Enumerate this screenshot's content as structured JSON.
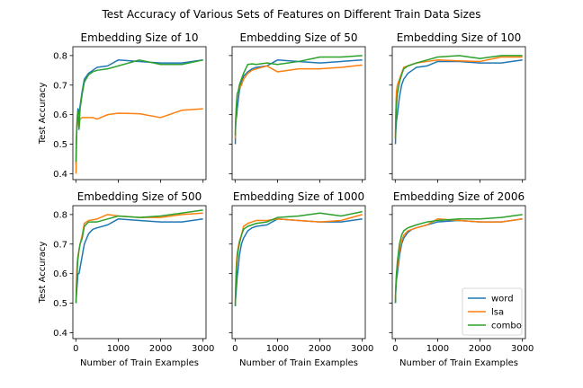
{
  "figure": {
    "title": "Test Accuracy of Various Sets of Features on Different Train Data Sizes"
  },
  "legend": {
    "location": "lower-right",
    "entries": [
      {
        "label": "word",
        "color": "#1f77b4"
      },
      {
        "label": "lsa",
        "color": "#ff7f0e"
      },
      {
        "label": "combo",
        "color": "#2ca02c"
      }
    ]
  },
  "chart_data": [
    {
      "type": "line",
      "title": "Embedding Size of 10",
      "xlabel": "",
      "ylabel": "Test Accuracy",
      "xlim": [
        -70,
        3070
      ],
      "ylim": [
        0.38,
        0.83
      ],
      "xticks": [
        0,
        1000,
        2000,
        3000
      ],
      "yticks": [
        0.4,
        0.5,
        0.6,
        0.7,
        0.8
      ],
      "xticklabels": [],
      "yticklabels": [
        "0.4",
        "0.5",
        "0.6",
        "0.7",
        "0.8"
      ],
      "grid": false,
      "series": [
        {
          "name": "word",
          "color": "#1f77b4",
          "x": [
            5,
            10,
            20,
            30,
            40,
            50,
            75,
            100,
            150,
            200,
            300,
            400,
            500,
            750,
            1000,
            1500,
            2000,
            2500,
            3000
          ],
          "y": [
            0.43,
            0.5,
            0.53,
            0.57,
            0.6,
            0.62,
            0.6,
            0.63,
            0.68,
            0.72,
            0.74,
            0.75,
            0.76,
            0.765,
            0.785,
            0.78,
            0.775,
            0.775,
            0.785
          ]
        },
        {
          "name": "lsa",
          "color": "#ff7f0e",
          "x": [
            5,
            10,
            20,
            30,
            40,
            50,
            75,
            100,
            150,
            200,
            300,
            400,
            500,
            750,
            1000,
            1500,
            2000,
            2500,
            3000
          ],
          "y": [
            0.4,
            0.45,
            0.55,
            0.58,
            0.59,
            0.6,
            0.555,
            0.585,
            0.59,
            0.59,
            0.59,
            0.59,
            0.585,
            0.6,
            0.605,
            0.603,
            0.59,
            0.615,
            0.62
          ]
        },
        {
          "name": "combo",
          "color": "#2ca02c",
          "x": [
            5,
            10,
            20,
            30,
            40,
            50,
            75,
            100,
            150,
            200,
            300,
            400,
            500,
            750,
            1000,
            1500,
            2000,
            2500,
            3000
          ],
          "y": [
            0.44,
            0.5,
            0.55,
            0.58,
            0.6,
            0.61,
            0.55,
            0.62,
            0.67,
            0.71,
            0.735,
            0.745,
            0.75,
            0.755,
            0.765,
            0.785,
            0.77,
            0.77,
            0.785
          ]
        }
      ]
    },
    {
      "type": "line",
      "title": "Embedding Size of 50",
      "xlabel": "",
      "ylabel": "",
      "xlim": [
        -70,
        3070
      ],
      "ylim": [
        0.38,
        0.83
      ],
      "xticks": [
        0,
        1000,
        2000,
        3000
      ],
      "yticks": [
        0.4,
        0.5,
        0.6,
        0.7,
        0.8
      ],
      "xticklabels": [],
      "yticklabels": [],
      "grid": false,
      "series": [
        {
          "name": "word",
          "color": "#1f77b4",
          "x": [
            5,
            10,
            20,
            30,
            40,
            50,
            75,
            100,
            150,
            200,
            300,
            400,
            500,
            750,
            1000,
            1500,
            2000,
            2500,
            3000
          ],
          "y": [
            0.5,
            0.55,
            0.58,
            0.59,
            0.6,
            0.62,
            0.65,
            0.68,
            0.71,
            0.73,
            0.745,
            0.755,
            0.76,
            0.765,
            0.785,
            0.78,
            0.775,
            0.78,
            0.785
          ]
        },
        {
          "name": "lsa",
          "color": "#ff7f0e",
          "x": [
            5,
            10,
            20,
            30,
            40,
            50,
            75,
            100,
            150,
            200,
            300,
            400,
            500,
            750,
            1000,
            1500,
            2000,
            2500,
            3000
          ],
          "y": [
            0.52,
            0.56,
            0.6,
            0.63,
            0.65,
            0.67,
            0.68,
            0.69,
            0.7,
            0.72,
            0.74,
            0.75,
            0.755,
            0.765,
            0.745,
            0.755,
            0.755,
            0.76,
            0.768
          ]
        },
        {
          "name": "combo",
          "color": "#2ca02c",
          "x": [
            5,
            10,
            20,
            30,
            40,
            50,
            75,
            100,
            150,
            200,
            300,
            400,
            500,
            750,
            1000,
            1500,
            2000,
            2500,
            3000
          ],
          "y": [
            0.53,
            0.57,
            0.6,
            0.63,
            0.65,
            0.67,
            0.68,
            0.7,
            0.72,
            0.74,
            0.77,
            0.772,
            0.77,
            0.775,
            0.77,
            0.78,
            0.795,
            0.795,
            0.8
          ]
        }
      ]
    },
    {
      "type": "line",
      "title": "Embedding Size of 100",
      "xlabel": "",
      "ylabel": "",
      "xlim": [
        -70,
        3070
      ],
      "ylim": [
        0.38,
        0.83
      ],
      "xticks": [
        0,
        1000,
        2000,
        3000
      ],
      "yticks": [
        0.4,
        0.5,
        0.6,
        0.7,
        0.8
      ],
      "xticklabels": [],
      "yticklabels": [],
      "grid": false,
      "series": [
        {
          "name": "word",
          "color": "#1f77b4",
          "x": [
            5,
            10,
            20,
            30,
            40,
            50,
            75,
            100,
            150,
            200,
            300,
            400,
            500,
            750,
            1000,
            1500,
            2000,
            2500,
            3000
          ],
          "y": [
            0.5,
            0.53,
            0.56,
            0.58,
            0.59,
            0.6,
            0.63,
            0.66,
            0.7,
            0.72,
            0.74,
            0.75,
            0.76,
            0.765,
            0.78,
            0.78,
            0.775,
            0.775,
            0.785
          ]
        },
        {
          "name": "lsa",
          "color": "#ff7f0e",
          "x": [
            5,
            10,
            20,
            30,
            40,
            50,
            75,
            100,
            150,
            200,
            300,
            400,
            500,
            750,
            1000,
            1500,
            2000,
            2500,
            3000
          ],
          "y": [
            0.52,
            0.6,
            0.65,
            0.68,
            0.69,
            0.7,
            0.71,
            0.72,
            0.74,
            0.76,
            0.765,
            0.77,
            0.775,
            0.78,
            0.785,
            0.782,
            0.78,
            0.795,
            0.795
          ]
        },
        {
          "name": "combo",
          "color": "#2ca02c",
          "x": [
            5,
            10,
            20,
            30,
            40,
            50,
            75,
            100,
            150,
            200,
            300,
            400,
            500,
            750,
            1000,
            1500,
            2000,
            2500,
            3000
          ],
          "y": [
            0.52,
            0.57,
            0.6,
            0.63,
            0.65,
            0.67,
            0.69,
            0.71,
            0.735,
            0.755,
            0.765,
            0.77,
            0.775,
            0.785,
            0.795,
            0.8,
            0.79,
            0.8,
            0.8
          ]
        }
      ]
    },
    {
      "type": "line",
      "title": "Embedding Size of 500",
      "xlabel": "Number of Train Examples",
      "ylabel": "Test Accuracy",
      "xlim": [
        -70,
        3070
      ],
      "ylim": [
        0.38,
        0.83
      ],
      "xticks": [
        0,
        1000,
        2000,
        3000
      ],
      "yticks": [
        0.4,
        0.5,
        0.6,
        0.7,
        0.8
      ],
      "xticklabels": [
        "0",
        "1000",
        "2000",
        "3000"
      ],
      "yticklabels": [
        "0.4",
        "0.5",
        "0.6",
        "0.7",
        "0.8"
      ],
      "grid": false,
      "series": [
        {
          "name": "word",
          "color": "#1f77b4",
          "x": [
            5,
            10,
            20,
            30,
            40,
            50,
            75,
            100,
            150,
            200,
            300,
            400,
            500,
            750,
            1000,
            1500,
            2000,
            2500,
            3000
          ],
          "y": [
            0.5,
            0.52,
            0.54,
            0.56,
            0.58,
            0.6,
            0.6,
            0.62,
            0.66,
            0.7,
            0.735,
            0.75,
            0.755,
            0.765,
            0.785,
            0.78,
            0.775,
            0.775,
            0.785
          ]
        },
        {
          "name": "lsa",
          "color": "#ff7f0e",
          "x": [
            5,
            10,
            20,
            30,
            40,
            50,
            75,
            100,
            150,
            200,
            300,
            400,
            500,
            750,
            1000,
            1500,
            2000,
            2500,
            3000
          ],
          "y": [
            0.5,
            0.55,
            0.6,
            0.63,
            0.65,
            0.66,
            0.68,
            0.7,
            0.73,
            0.77,
            0.78,
            0.782,
            0.785,
            0.8,
            0.795,
            0.79,
            0.79,
            0.8,
            0.805
          ]
        },
        {
          "name": "combo",
          "color": "#2ca02c",
          "x": [
            5,
            10,
            20,
            30,
            40,
            50,
            75,
            100,
            150,
            200,
            300,
            400,
            500,
            750,
            1000,
            1500,
            2000,
            2500,
            3000
          ],
          "y": [
            0.5,
            0.53,
            0.57,
            0.6,
            0.63,
            0.65,
            0.68,
            0.7,
            0.72,
            0.76,
            0.775,
            0.775,
            0.775,
            0.785,
            0.795,
            0.79,
            0.795,
            0.805,
            0.815
          ]
        }
      ]
    },
    {
      "type": "line",
      "title": "Embedding Size of 1000",
      "xlabel": "Number of Train Examples",
      "ylabel": "",
      "xlim": [
        -70,
        3070
      ],
      "ylim": [
        0.38,
        0.83
      ],
      "xticks": [
        0,
        1000,
        2000,
        3000
      ],
      "yticks": [
        0.4,
        0.5,
        0.6,
        0.7,
        0.8
      ],
      "xticklabels": [
        "0",
        "1000",
        "2000",
        "3000"
      ],
      "yticklabels": [],
      "grid": false,
      "series": [
        {
          "name": "word",
          "color": "#1f77b4",
          "x": [
            5,
            10,
            20,
            30,
            40,
            50,
            75,
            100,
            150,
            200,
            300,
            400,
            500,
            750,
            1000,
            1500,
            2000,
            2500,
            3000
          ],
          "y": [
            0.49,
            0.51,
            0.53,
            0.55,
            0.57,
            0.59,
            0.62,
            0.66,
            0.7,
            0.72,
            0.745,
            0.755,
            0.76,
            0.765,
            0.785,
            0.78,
            0.775,
            0.775,
            0.785
          ]
        },
        {
          "name": "lsa",
          "color": "#ff7f0e",
          "x": [
            5,
            10,
            20,
            30,
            40,
            50,
            75,
            100,
            150,
            200,
            300,
            400,
            500,
            750,
            1000,
            1500,
            2000,
            2500,
            3000
          ],
          "y": [
            0.5,
            0.55,
            0.6,
            0.63,
            0.65,
            0.67,
            0.69,
            0.71,
            0.73,
            0.76,
            0.77,
            0.775,
            0.78,
            0.78,
            0.785,
            0.78,
            0.775,
            0.78,
            0.8
          ]
        },
        {
          "name": "combo",
          "color": "#2ca02c",
          "x": [
            5,
            10,
            20,
            30,
            40,
            50,
            75,
            100,
            150,
            200,
            300,
            400,
            500,
            750,
            1000,
            1500,
            2000,
            2500,
            3000
          ],
          "y": [
            0.49,
            0.53,
            0.56,
            0.6,
            0.63,
            0.65,
            0.68,
            0.7,
            0.73,
            0.75,
            0.76,
            0.765,
            0.77,
            0.775,
            0.79,
            0.795,
            0.805,
            0.795,
            0.81
          ]
        }
      ]
    },
    {
      "type": "line",
      "title": "Embedding Size of 2006",
      "xlabel": "Number of Train Examples",
      "ylabel": "",
      "xlim": [
        -70,
        3070
      ],
      "ylim": [
        0.38,
        0.83
      ],
      "xticks": [
        0,
        1000,
        2000,
        3000
      ],
      "yticks": [
        0.4,
        0.5,
        0.6,
        0.7,
        0.8
      ],
      "xticklabels": [
        "0",
        "1000",
        "2000",
        "3000"
      ],
      "yticklabels": [],
      "grid": false,
      "series": [
        {
          "name": "word",
          "color": "#1f77b4",
          "x": [
            5,
            10,
            20,
            30,
            40,
            50,
            75,
            100,
            150,
            200,
            300,
            400,
            500,
            750,
            1000,
            1500,
            2000,
            2500,
            3000
          ],
          "y": [
            0.5,
            0.53,
            0.56,
            0.58,
            0.59,
            0.6,
            0.63,
            0.66,
            0.7,
            0.72,
            0.74,
            0.75,
            0.755,
            0.765,
            0.775,
            0.78,
            0.775,
            0.775,
            0.785
          ]
        },
        {
          "name": "lsa",
          "color": "#ff7f0e",
          "x": [
            5,
            10,
            20,
            30,
            40,
            50,
            75,
            100,
            150,
            200,
            300,
            400,
            500,
            750,
            1000,
            1500,
            2000,
            2500,
            3000
          ],
          "y": [
            0.51,
            0.55,
            0.58,
            0.6,
            0.61,
            0.62,
            0.65,
            0.68,
            0.71,
            0.73,
            0.745,
            0.75,
            0.755,
            0.765,
            0.785,
            0.78,
            0.775,
            0.775,
            0.785
          ]
        },
        {
          "name": "combo",
          "color": "#2ca02c",
          "x": [
            5,
            10,
            20,
            30,
            40,
            50,
            75,
            100,
            150,
            200,
            300,
            400,
            500,
            750,
            1000,
            1500,
            2000,
            2500,
            3000
          ],
          "y": [
            0.5,
            0.54,
            0.57,
            0.6,
            0.62,
            0.64,
            0.67,
            0.7,
            0.73,
            0.745,
            0.755,
            0.76,
            0.765,
            0.775,
            0.78,
            0.785,
            0.785,
            0.79,
            0.8
          ]
        }
      ]
    }
  ]
}
